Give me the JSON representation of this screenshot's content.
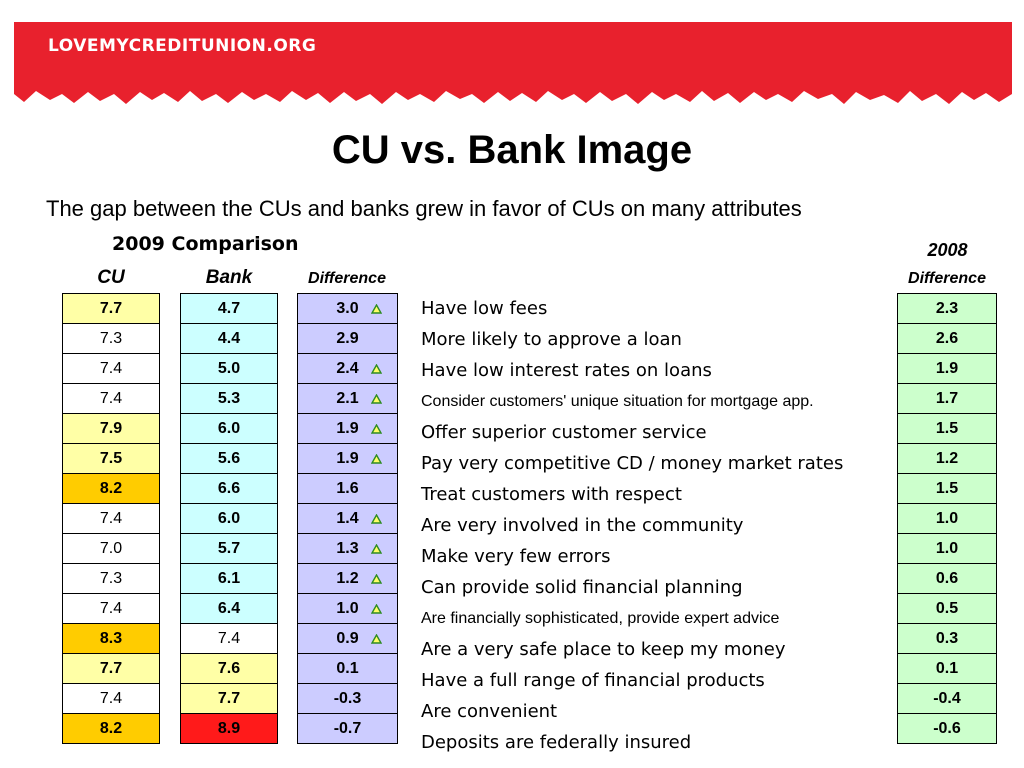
{
  "header": {
    "logo_text": "LOVEMYCREDITUNION.ORG",
    "brand_color": "#e8212d"
  },
  "title": "CU vs. Bank Image",
  "subtitle": "The gap between the CUs and banks grew in favor of CUs on many attributes",
  "table": {
    "comparison_label": "2009 Comparison",
    "year2008_label": "2008",
    "columns": {
      "cu": "CU",
      "bank": "Bank",
      "difference": "Difference",
      "difference_2008": "Difference"
    },
    "rows": [
      {
        "cu": "7.7",
        "cu_bold": true,
        "cu_color": "lightyellow",
        "bank": "4.7",
        "bank_bold": true,
        "bank_color": "lightblue",
        "diff": "3.0",
        "up": true,
        "attribute": "Have low fees",
        "attr_small": false,
        "diff2008": "2.3"
      },
      {
        "cu": "7.3",
        "cu_bold": false,
        "cu_color": "plain",
        "bank": "4.4",
        "bank_bold": true,
        "bank_color": "lightblue",
        "diff": "2.9",
        "up": false,
        "attribute": "More likely to approve a loan",
        "attr_small": false,
        "diff2008": "2.6"
      },
      {
        "cu": "7.4",
        "cu_bold": false,
        "cu_color": "plain",
        "bank": "5.0",
        "bank_bold": true,
        "bank_color": "lightblue",
        "diff": "2.4",
        "up": true,
        "attribute": "Have low interest rates on loans",
        "attr_small": false,
        "diff2008": "1.9"
      },
      {
        "cu": "7.4",
        "cu_bold": false,
        "cu_color": "plain",
        "bank": "5.3",
        "bank_bold": true,
        "bank_color": "lightblue",
        "diff": "2.1",
        "up": true,
        "attribute": "Consider customers' unique situation for mortgage app.",
        "attr_small": true,
        "diff2008": "1.7"
      },
      {
        "cu": "7.9",
        "cu_bold": true,
        "cu_color": "lightyellow",
        "bank": "6.0",
        "bank_bold": true,
        "bank_color": "lightblue",
        "diff": "1.9",
        "up": true,
        "attribute": "Offer superior customer service",
        "attr_small": false,
        "diff2008": "1.5"
      },
      {
        "cu": "7.5",
        "cu_bold": true,
        "cu_color": "lightyellow",
        "bank": "5.6",
        "bank_bold": true,
        "bank_color": "lightblue",
        "diff": "1.9",
        "up": true,
        "attribute": "Pay very competitive CD / money market rates",
        "attr_small": false,
        "diff2008": "1.2"
      },
      {
        "cu": "8.2",
        "cu_bold": true,
        "cu_color": "orange",
        "bank": "6.6",
        "bank_bold": true,
        "bank_color": "lightblue",
        "diff": "1.6",
        "up": false,
        "attribute": "Treat customers with respect",
        "attr_small": false,
        "diff2008": "1.5"
      },
      {
        "cu": "7.4",
        "cu_bold": false,
        "cu_color": "plain",
        "bank": "6.0",
        "bank_bold": true,
        "bank_color": "lightblue",
        "diff": "1.4",
        "up": true,
        "attribute": "Are very involved in the community",
        "attr_small": false,
        "diff2008": "1.0"
      },
      {
        "cu": "7.0",
        "cu_bold": false,
        "cu_color": "plain",
        "bank": "5.7",
        "bank_bold": true,
        "bank_color": "lightblue",
        "diff": "1.3",
        "up": true,
        "attribute": "Make very few errors",
        "attr_small": false,
        "diff2008": "1.0"
      },
      {
        "cu": "7.3",
        "cu_bold": false,
        "cu_color": "plain",
        "bank": "6.1",
        "bank_bold": true,
        "bank_color": "lightblue",
        "diff": "1.2",
        "up": true,
        "attribute": "Can provide solid financial planning",
        "attr_small": false,
        "diff2008": "0.6"
      },
      {
        "cu": "7.4",
        "cu_bold": false,
        "cu_color": "plain",
        "bank": "6.4",
        "bank_bold": true,
        "bank_color": "lightblue",
        "diff": "1.0",
        "up": true,
        "attribute": "Are financially sophisticated, provide expert advice",
        "attr_small": true,
        "diff2008": "0.5"
      },
      {
        "cu": "8.3",
        "cu_bold": true,
        "cu_color": "orange",
        "bank": "7.4",
        "bank_bold": false,
        "bank_color": "plain",
        "diff": "0.9",
        "up": true,
        "attribute": "Are a very safe place to keep my money",
        "attr_small": false,
        "diff2008": "0.3"
      },
      {
        "cu": "7.7",
        "cu_bold": true,
        "cu_color": "lightyellow",
        "bank": "7.6",
        "bank_bold": true,
        "bank_color": "lightyellow",
        "diff": "0.1",
        "up": false,
        "attribute": "Have a full range of financial products",
        "attr_small": false,
        "diff2008": "0.1"
      },
      {
        "cu": "7.4",
        "cu_bold": false,
        "cu_color": "plain",
        "bank": "7.7",
        "bank_bold": true,
        "bank_color": "lightyellow",
        "diff": "-0.3",
        "up": false,
        "attribute": "Are convenient",
        "attr_small": false,
        "diff2008": "-0.4"
      },
      {
        "cu": "8.2",
        "cu_bold": true,
        "cu_color": "orange",
        "bank": "8.9",
        "bank_bold": true,
        "bank_color": "red",
        "diff": "-0.7",
        "up": false,
        "attribute": "Deposits are federally insured",
        "attr_small": false,
        "diff2008": "-0.6"
      }
    ],
    "colors": {
      "lightyellow": "#ffffa6",
      "orange": "#ffcc00",
      "lightblue": "#ccffff",
      "red": "#ff1a1a",
      "lavender": "#ccccff",
      "lightgreen": "#ccffcc",
      "up_arrow": "#2e8b22"
    }
  }
}
